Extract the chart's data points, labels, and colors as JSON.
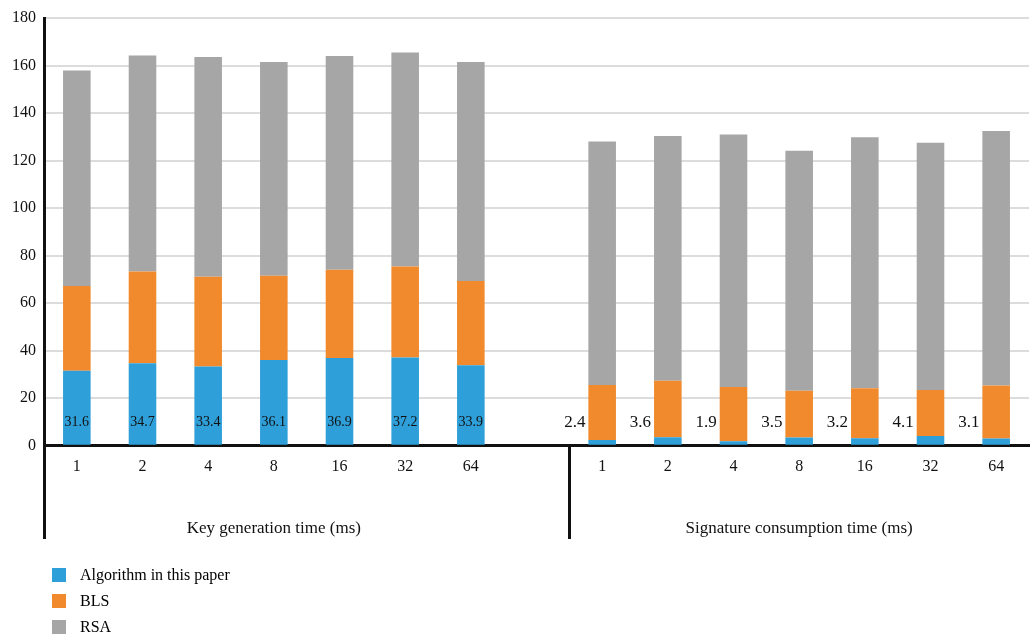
{
  "chart_data": {
    "type": "bar",
    "stacked": true,
    "categories": [
      "1",
      "2",
      "4",
      "8",
      "16",
      "32",
      "64",
      null,
      "1",
      "2",
      "4",
      "8",
      "16",
      "32",
      "64"
    ],
    "series": [
      {
        "name": "Algorithm in this paper",
        "color": "#2e9fd8",
        "values": [
          31.6,
          34.7,
          33.4,
          36.1,
          36.9,
          37.2,
          33.9,
          null,
          2.4,
          3.6,
          1.9,
          3.5,
          3.2,
          4.1,
          3.1
        ],
        "value_labels": [
          "31.6",
          "34.7",
          "33.4",
          "36.1",
          "36.9",
          "37.2",
          "33.9",
          null,
          "2.4",
          "3.6",
          "1.9",
          "3.5",
          "3.2",
          "4.1",
          "3.1"
        ]
      },
      {
        "name": "BLS",
        "color": "#f08a2c",
        "values": [
          35.6,
          38.6,
          37.7,
          35.5,
          37.2,
          38.2,
          35.4,
          null,
          23.2,
          23.8,
          22.8,
          19.7,
          21.0,
          19.4,
          22.3
        ]
      },
      {
        "name": "RSA",
        "color": "#a6a6a6",
        "values": [
          90.7,
          90.9,
          92.5,
          89.9,
          89.9,
          90.1,
          92.2,
          null,
          102.4,
          102.9,
          106.3,
          100.9,
          105.6,
          104.0,
          107.1
        ]
      }
    ],
    "ylim": [
      0,
      180
    ],
    "yticks": [
      0,
      20,
      40,
      60,
      80,
      100,
      120,
      140,
      160,
      180
    ],
    "grid": "y",
    "legend": "bottom left",
    "annotations": [
      "Key generation time (ms)",
      "Signature consumption time (ms)"
    ]
  }
}
